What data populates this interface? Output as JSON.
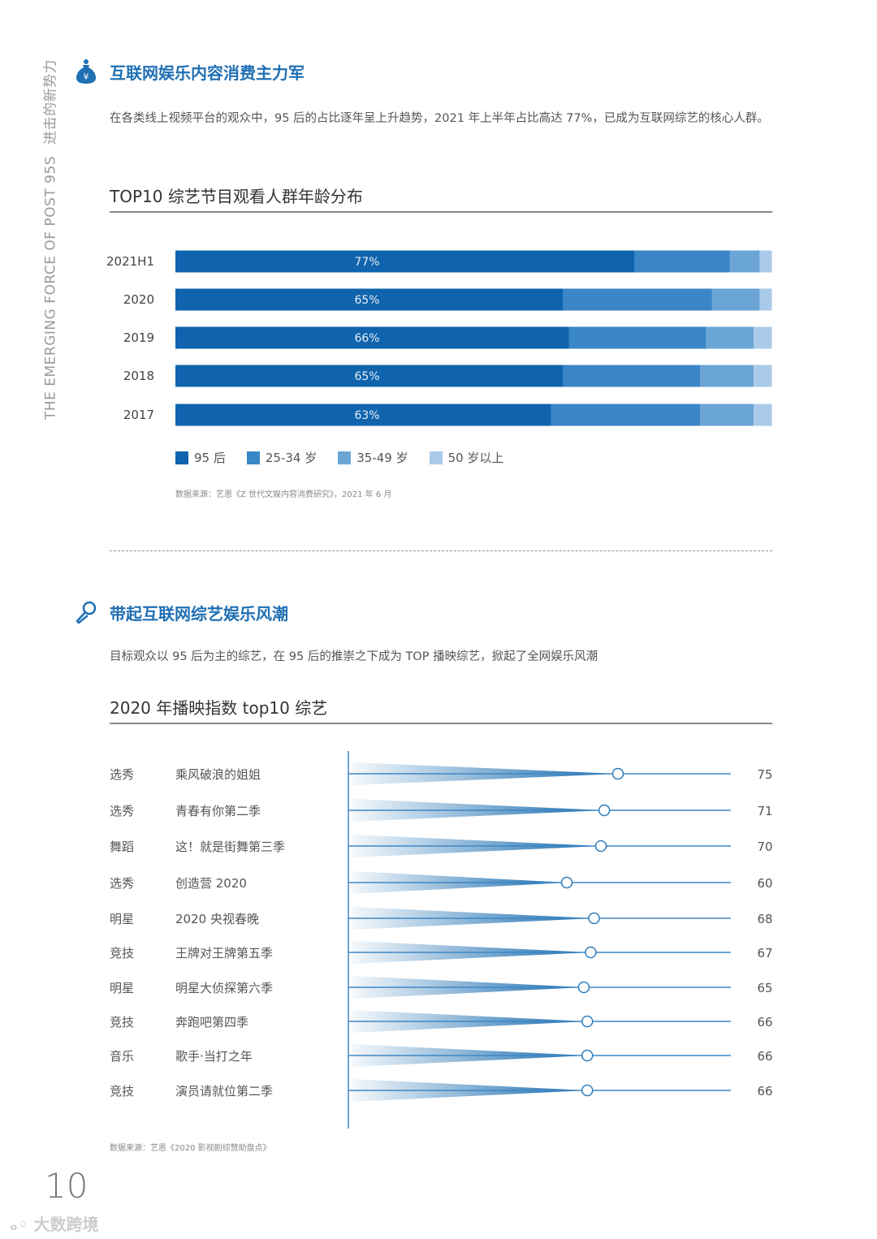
{
  "side": {
    "en": "THE EMERGING FORCE OF POST 95S",
    "cn": "进击的新势力"
  },
  "section1": {
    "icon": "money-bag-icon",
    "title": "互联网娱乐内容消费主力军",
    "para": "在各类线上视频平台的观众中，95 后的占比逐年呈上升趋势，2021 年上半年占比高达 77%，已成为互联网综艺的核心人群。",
    "source": "数据来源：艺恩《Z 世代文娱内容消费研究》，2021 年 6 月"
  },
  "section2": {
    "icon": "microphone-icon",
    "title": "带起互联网综艺娱乐风潮",
    "para": "目标观众以 95 后为主的综艺，在 95 后的推崇之下成为 TOP 播映综艺，掀起了全网娱乐风潮",
    "source": "数据来源：艺恩《2020 影视剧综赞助盘点》"
  },
  "chart_data": [
    {
      "type": "bar",
      "orientation": "horizontal-stacked",
      "title": "TOP10 综艺节目观看人群年龄分布",
      "categories": [
        "2021H1",
        "2020",
        "2019",
        "2018",
        "2017"
      ],
      "series": [
        {
          "name": "95 后",
          "color": "#0f64ad",
          "values": [
            77,
            65,
            66,
            65,
            63
          ],
          "labels": [
            "77%",
            "65%",
            "66%",
            "65%",
            "63%"
          ]
        },
        {
          "name": "25-34 岁",
          "color": "#3a86c6",
          "values": [
            16,
            25,
            23,
            23,
            25
          ]
        },
        {
          "name": "35-49 岁",
          "color": "#6aa5d6",
          "values": [
            5,
            8,
            8,
            9,
            9
          ]
        },
        {
          "name": "50 岁以上",
          "color": "#a9cbe9",
          "values": [
            2,
            2,
            3,
            3,
            3
          ]
        }
      ],
      "xlim": [
        0,
        100
      ],
      "legend": "bottom-left"
    },
    {
      "type": "lollipop",
      "title": "2020 年播映指数 top10 综艺",
      "color": "#1a6db0",
      "rows": [
        {
          "category": "选秀",
          "name": "乘风破浪的姐姐",
          "value": 75
        },
        {
          "category": "选秀",
          "name": "青春有你第二季",
          "value": 71
        },
        {
          "category": "舞蹈",
          "name": "这！就是街舞第三季",
          "value": 70
        },
        {
          "category": "选秀",
          "name": "创造营 2020",
          "value": 60
        },
        {
          "category": "明星",
          "name": "2020 央视春晚",
          "value": 68
        },
        {
          "category": "竞技",
          "name": "王牌对王牌第五季",
          "value": 67
        },
        {
          "category": "明星",
          "name": "明星大侦探第六季",
          "value": 65
        },
        {
          "category": "竞技",
          "name": "奔跑吧第四季",
          "value": 66
        },
        {
          "category": "音乐",
          "name": "歌手·当打之年",
          "value": 66
        },
        {
          "category": "竞技",
          "name": "演员请就位第二季",
          "value": 66
        }
      ]
    }
  ],
  "footer": {
    "page": "10",
    "watermark": "大数跨境"
  }
}
